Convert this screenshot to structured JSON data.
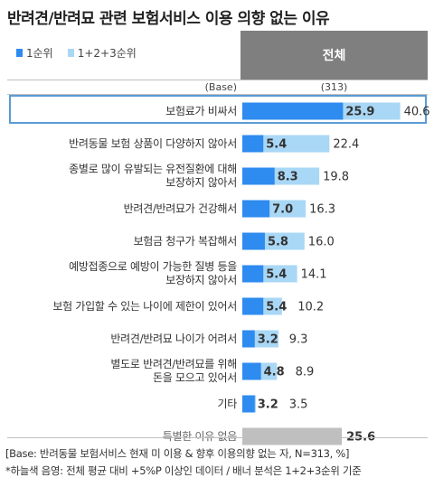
{
  "title": "반려견/반려묘 관련 보험서비스 이용 의향 없는 이유",
  "legend": [
    {
      "label": "1순위",
      "color": "#2e8bef"
    },
    {
      "label": "1+2+3순위",
      "color": "#a9d7f6"
    }
  ],
  "column_header": "전체",
  "base": {
    "label": "(Base)",
    "value": "(313)"
  },
  "chart_data": {
    "type": "bar",
    "orientation": "horizontal",
    "categories": [
      "보험료가 비싸서",
      "반려동물 보험 상품이 다양하지 않아서",
      "종별로 많이 유발되는 유전질환에 대해\n보장하지 않아서",
      "반려견/반려묘가 건강해서",
      "보험금 청구가 복잡해서",
      "예방접종으로 예방이 가능한 질병 등을\n보장하지 않아서",
      "보험 가입할 수 있는 나이에 제한이 있어서",
      "반려견/반려묘 나이가 어려서",
      "별도로 반려견/반려묘를 위해\n돈을 모으고 있어서",
      "기타"
    ],
    "series": [
      {
        "name": "1순위",
        "values": [
          25.9,
          5.4,
          8.3,
          7.0,
          5.8,
          5.4,
          5.4,
          3.2,
          4.8,
          3.2
        ]
      },
      {
        "name": "1+2+3순위",
        "values": [
          40.6,
          22.4,
          19.8,
          16.3,
          16.0,
          14.1,
          10.2,
          9.3,
          8.9,
          3.5
        ]
      }
    ],
    "highlighted": "보험료가 비싸서",
    "extra": {
      "label": "특별한 이유 없음",
      "value": 25.6,
      "color": "#bfbfbf"
    }
  },
  "footnotes": [
    "[Base: 반려동물 보험서비스 현재 미 이용 & 향후 이용의향 없는 자, N=313, %]",
    "*하늘색 음영: 전체 평균 대비 +5%P 이상인 데이터 / 배너 분석은 1+2+3순위 기준"
  ]
}
